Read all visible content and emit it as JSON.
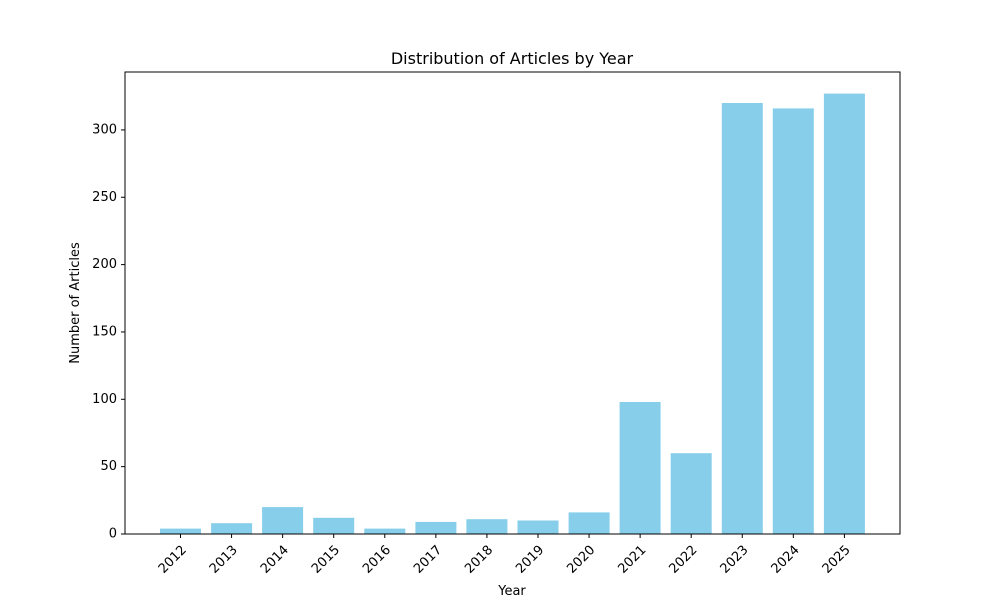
{
  "chart_data": {
    "type": "bar",
    "title": "Distribution of Articles by Year",
    "xlabel": "Year",
    "ylabel": "Number of Articles",
    "categories": [
      "2012",
      "2013",
      "2014",
      "2015",
      "2016",
      "2017",
      "2018",
      "2019",
      "2020",
      "2021",
      "2022",
      "2023",
      "2024",
      "2025"
    ],
    "values": [
      4,
      8,
      20,
      12,
      4,
      9,
      11,
      10,
      16,
      98,
      60,
      320,
      316,
      327
    ],
    "ylim": [
      0,
      343
    ],
    "yticks": [
      0,
      50,
      100,
      150,
      200,
      250,
      300
    ],
    "grid": false,
    "bar_color": "#87ceeb",
    "xtick_rotation": "45"
  }
}
